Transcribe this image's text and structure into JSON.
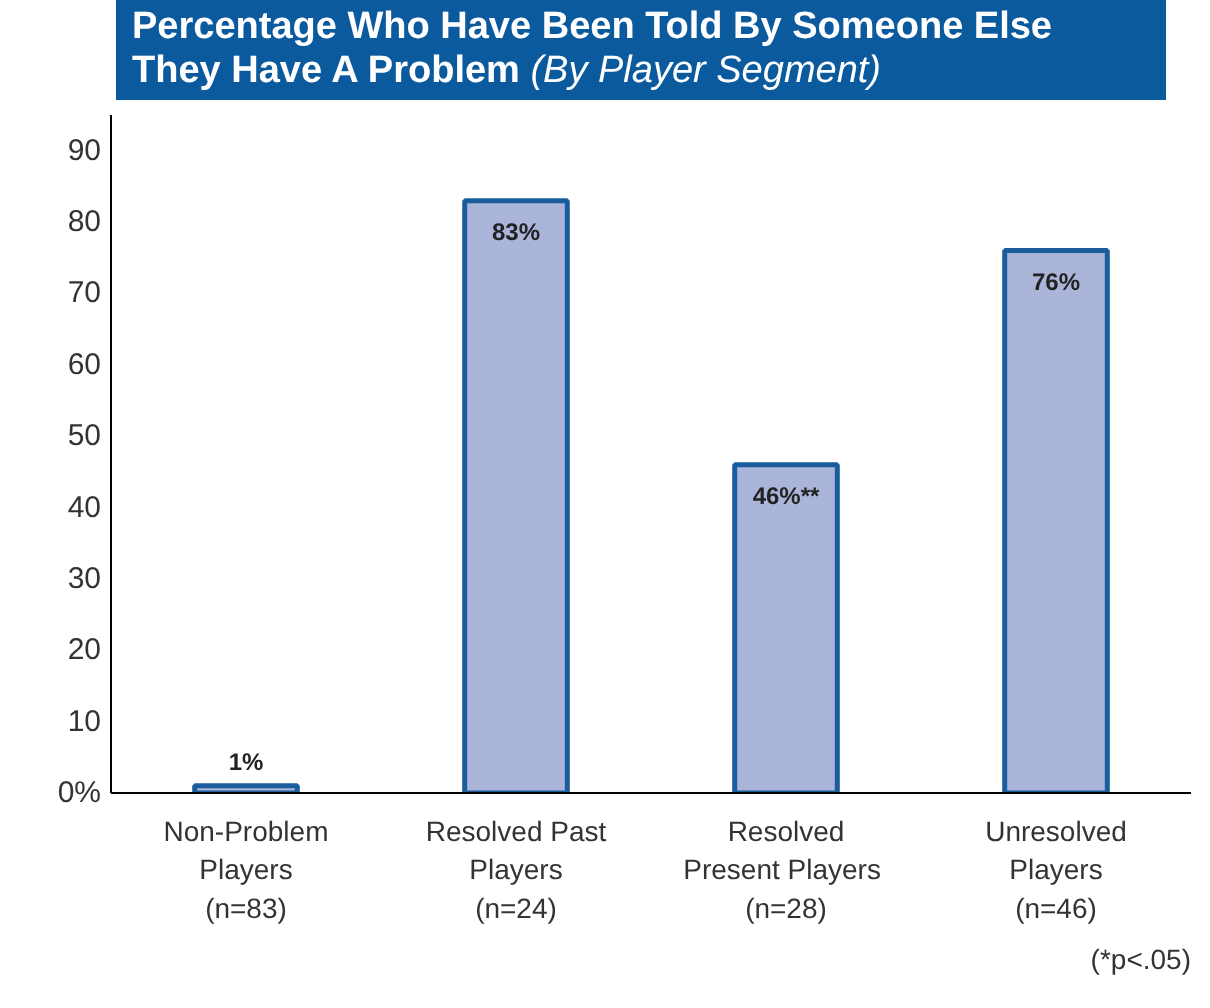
{
  "chart_data": {
    "type": "bar",
    "title": "Percentage Who Have Been Told By Someone Else They Have A Problem",
    "subtitle": "(By Player Segment)",
    "categories": [
      "Non-Problem\nPlayers\n(n=83)",
      "Resolved Past\nPlayers\n(n=24)",
      "Resolved\nPresent  Players\n(n=28)",
      "Unresolved\nPlayers\n(n=46)"
    ],
    "values": [
      1,
      83,
      46,
      76
    ],
    "value_labels": [
      "1%",
      "83%",
      "46%**",
      "76%"
    ],
    "color": "#abb5d9",
    "ylim": [
      0,
      95
    ],
    "yticks": [
      {
        "value": 0,
        "label": "0%"
      },
      10,
      20,
      30,
      40,
      50,
      60,
      70,
      80,
      90
    ],
    "grid": false,
    "annotations": [
      "(*p<.05)"
    ]
  }
}
